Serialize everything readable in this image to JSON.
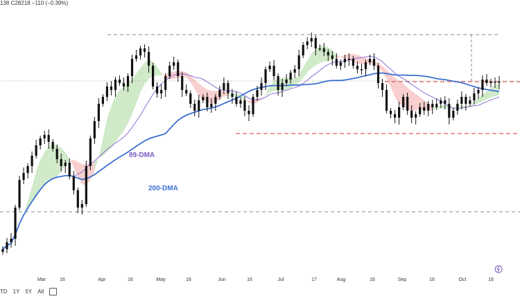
{
  "header": {
    "ohlc_text": "138  C28218  −110 (−0.39%)"
  },
  "toolbar": {
    "ranges": [
      "TD",
      "1Y",
      "5Y",
      "All"
    ]
  },
  "chart_data": {
    "type": "candlestick",
    "x_tick_labels": [
      "Mar",
      "16",
      "Apr",
      "16",
      "May",
      "16",
      "Jun",
      "16",
      "Jul",
      "17",
      "Aug",
      "16",
      "Sep",
      "16",
      "Oct",
      "16"
    ],
    "series": [
      {
        "name": "89-DMA",
        "color": "#8a6fd6"
      },
      {
        "name": "200-DMA",
        "color": "#3b6fd1"
      }
    ],
    "cloud": {
      "bullish_color": "#c8e6c0",
      "bearish_color": "#f7c6c6"
    },
    "price_close_path": [
      360,
      350,
      345,
      300,
      260,
      250,
      240,
      225,
      210,
      200,
      195,
      205,
      215,
      230,
      240,
      235,
      255,
      275,
      300,
      295,
      240,
      200,
      175,
      150,
      140,
      125,
      130,
      115,
      120,
      125,
      110,
      85,
      80,
      70,
      75,
      95,
      125,
      135,
      130,
      110,
      95,
      90,
      110,
      130,
      135,
      150,
      160,
      145,
      140,
      155,
      150,
      140,
      130,
      120,
      135,
      140,
      150,
      145,
      160,
      165,
      140,
      130,
      120,
      100,
      95,
      110,
      130,
      120,
      115,
      105,
      100,
      80,
      65,
      60,
      55,
      70,
      70,
      75,
      80,
      85,
      95,
      90,
      85,
      85,
      95,
      100,
      100,
      90,
      85,
      95,
      120,
      130,
      160,
      165,
      170,
      155,
      140,
      160,
      170,
      165,
      155,
      160,
      150,
      155,
      150,
      145,
      150,
      170,
      160,
      150,
      140,
      150,
      145,
      135,
      130,
      115,
      120,
      118,
      119,
      118
    ],
    "reference_lines": {
      "gray_top_dashed": true,
      "gray_bottom_dashed": true,
      "red_upper_dashed": true,
      "red_lower_dashed": true,
      "gray_mid_dotted": true
    },
    "annotations": [
      "89-DMA",
      "200-DMA"
    ]
  }
}
